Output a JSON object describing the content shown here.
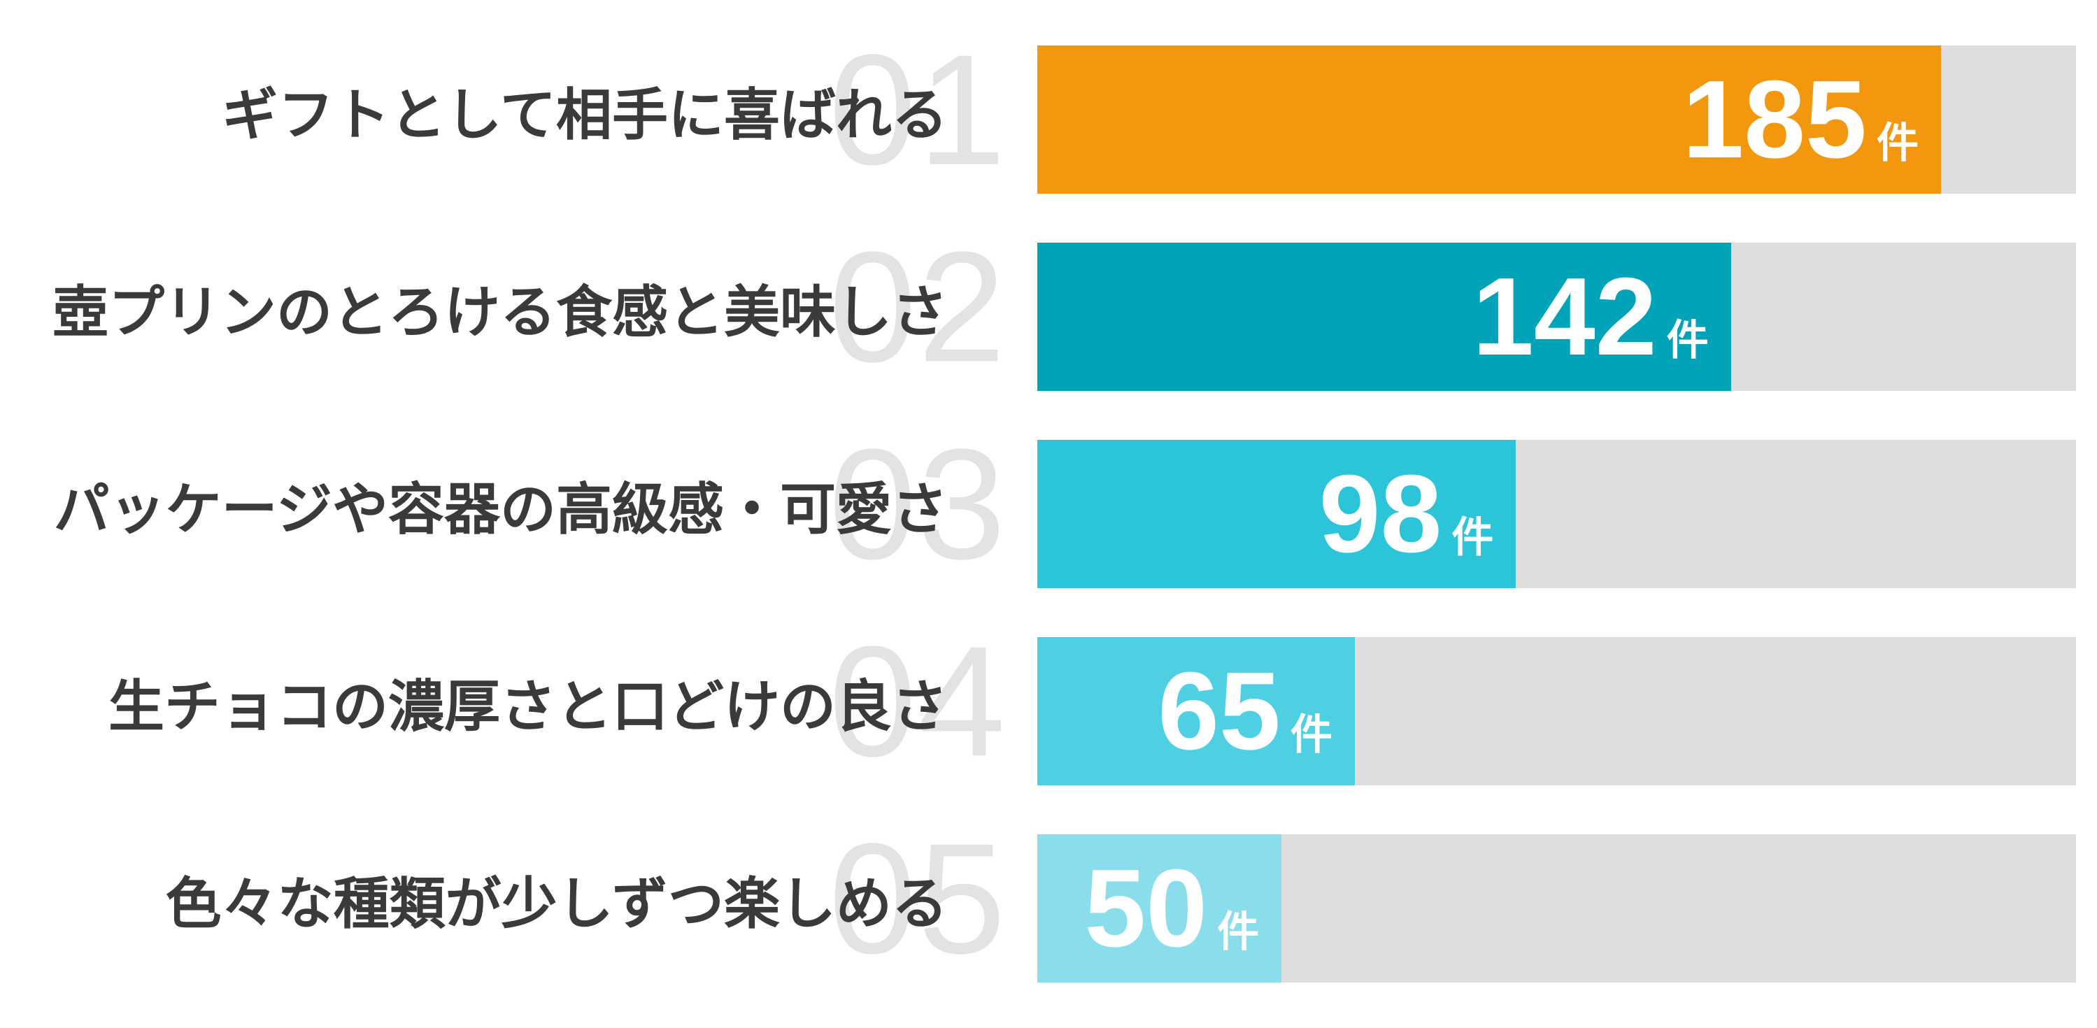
{
  "chart_data": {
    "type": "bar",
    "orientation": "horizontal",
    "title": "",
    "unit": "件",
    "categories": [
      "ギフトとして相手に喜ばれる",
      "壺プリンのとろける食感と美味しさ",
      "パッケージや容器の高級感・可愛さ",
      "生チョコの濃厚さと口どけの良さ",
      "色々な種類が少しずつ楽しめる"
    ],
    "values": [
      185,
      142,
      98,
      65,
      50
    ],
    "value_labels": [
      "185件",
      "142件",
      "98件",
      "65件",
      "50件"
    ],
    "rank_labels": [
      "01",
      "02",
      "03",
      "04",
      "05"
    ],
    "bar_colors": [
      "#F2970E",
      "#00A3B8",
      "#2BC4D9",
      "#4FD0E2",
      "#8ADEEC"
    ],
    "track_color": "#DEDEDE",
    "rank_number_color": "#E3E3E3",
    "label_color": "#3A3A3A",
    "value_text_color": "#FFFFFF",
    "legend": "none",
    "grid": false,
    "axis_ticks": "none",
    "max_bar_fraction": 0.87
  }
}
